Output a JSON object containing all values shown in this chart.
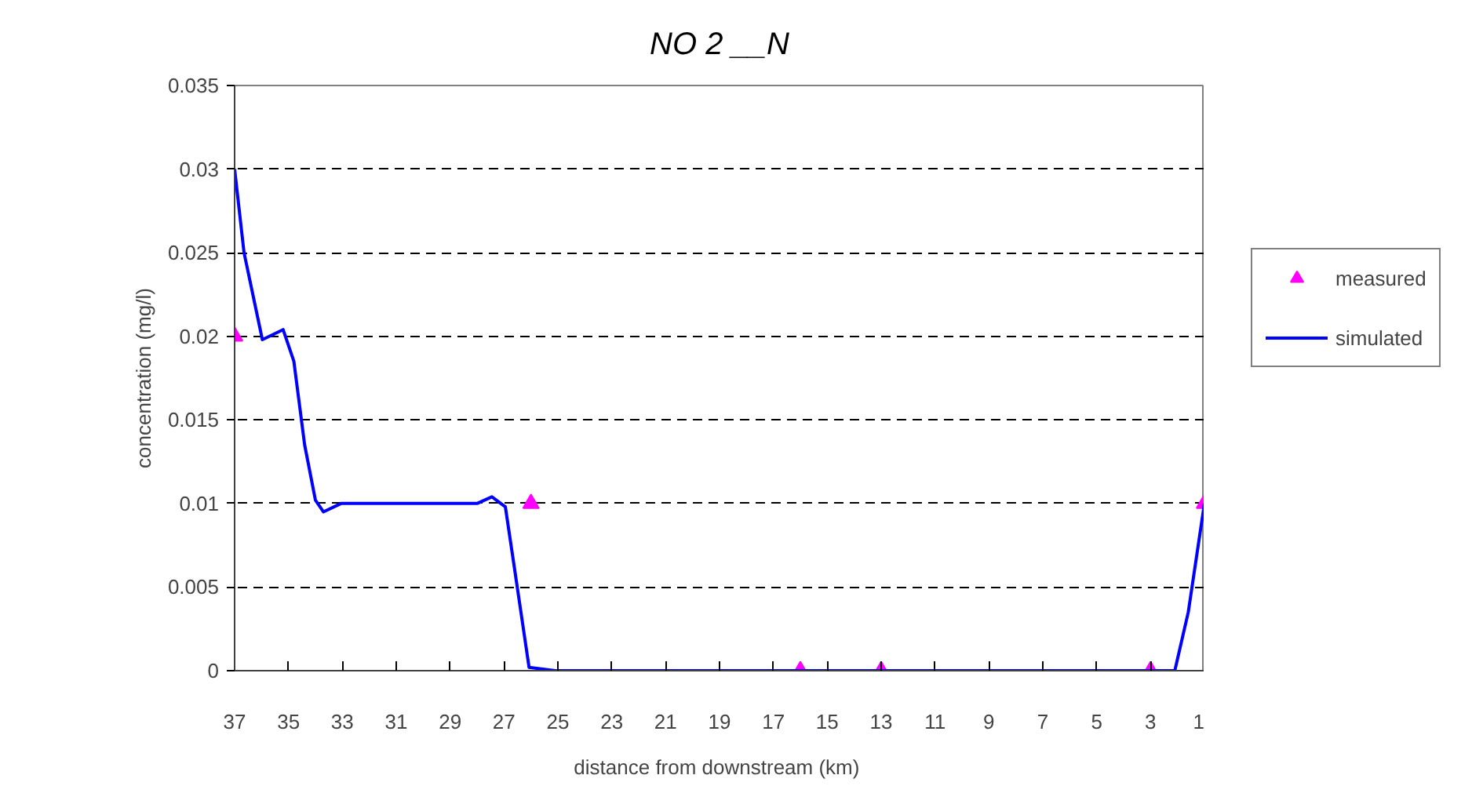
{
  "chart_data": {
    "type": "line",
    "title": "NO 2 __N",
    "xlabel": "distance  from downstream (km)",
    "ylabel": "concentration (mg/l)",
    "xlim": [
      37,
      1
    ],
    "xticks": [
      37,
      35,
      33,
      31,
      29,
      27,
      25,
      23,
      21,
      19,
      17,
      15,
      13,
      11,
      9,
      7,
      5,
      3,
      1
    ],
    "ylim": [
      0,
      0.035
    ],
    "yticks": [
      0,
      0.005,
      0.01,
      0.015,
      0.02,
      0.025,
      0.03,
      0.035
    ],
    "grid": "y",
    "legend": "right",
    "series": [
      {
        "name": "measured",
        "type": "scatter",
        "marker": "triangle",
        "color": "#ff00ff",
        "x": [
          37,
          26,
          16,
          13,
          3,
          1
        ],
        "values": [
          0.02,
          0.01,
          0,
          0,
          0,
          0.01
        ]
      },
      {
        "name": "simulated",
        "marker": "none",
        "line_style": "solid",
        "color": "#0000ff",
        "x": [
          37,
          36.65,
          35.97,
          35.2,
          34.8,
          34.4,
          34.0,
          33.7,
          33.05,
          28.0,
          27.45,
          26.95,
          26.6,
          26.07,
          25.1,
          3,
          2.1,
          1.6,
          1
        ],
        "values": [
          0.03,
          0.025,
          0.0198,
          0.0204,
          0.0185,
          0.0135,
          0.0102,
          0.0095,
          0.01,
          0.01,
          0.0104,
          0.0098,
          0.006,
          0.0002,
          0,
          0,
          0,
          0.0035,
          0.01
        ]
      }
    ]
  }
}
